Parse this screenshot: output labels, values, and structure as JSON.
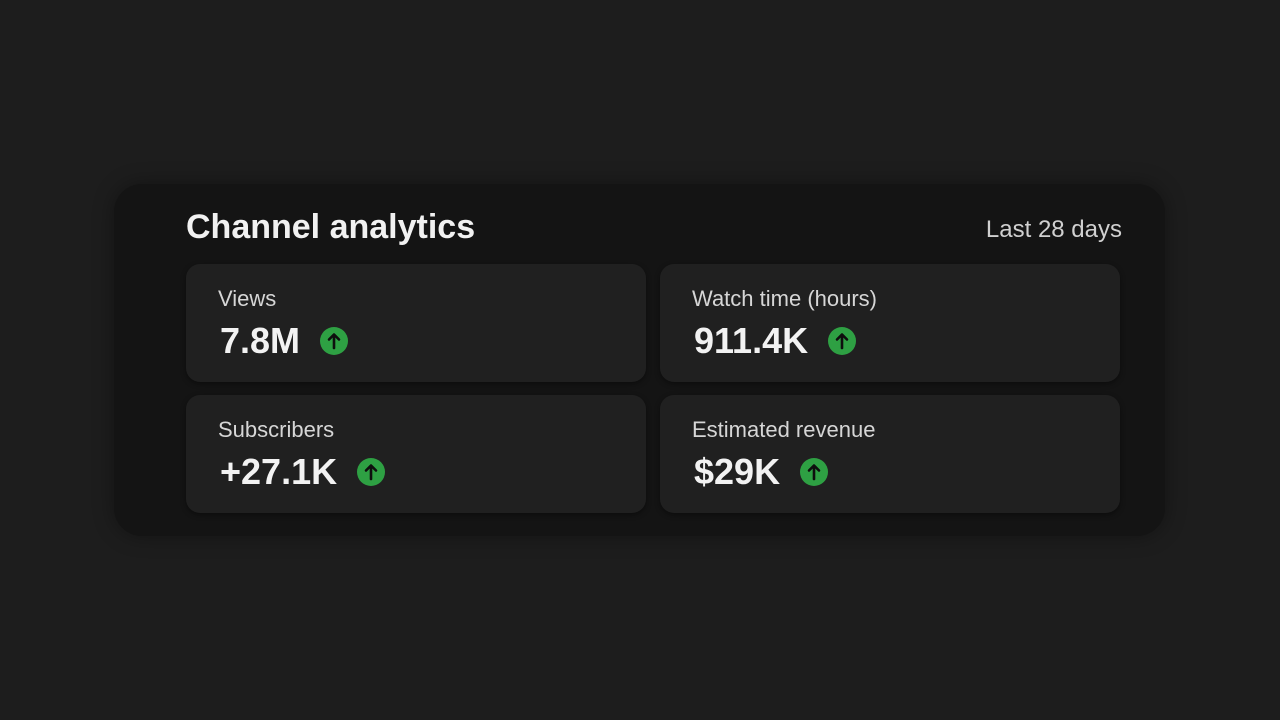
{
  "header": {
    "title": "Channel analytics",
    "range": "Last 28 days"
  },
  "metrics": [
    {
      "label": "Views",
      "value": "7.8M"
    },
    {
      "label": "Watch time (hours)",
      "value": "911.4K"
    },
    {
      "label": "Subscribers",
      "value": "+27.1K"
    },
    {
      "label": "Estimated revenue",
      "value": "$29K"
    }
  ]
}
